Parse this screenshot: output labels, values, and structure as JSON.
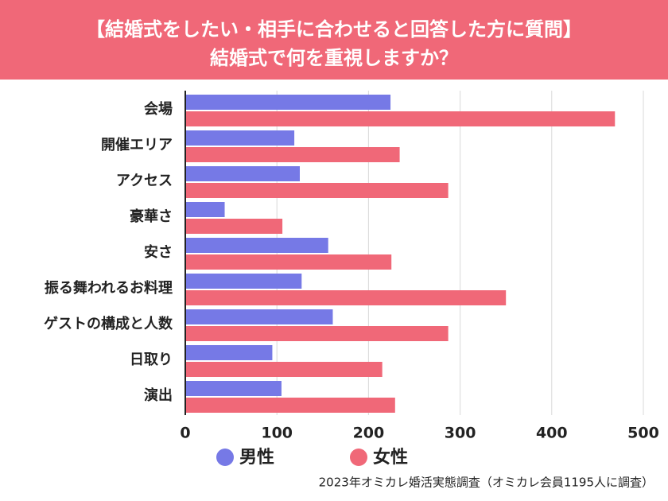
{
  "chart_data": {
    "type": "hbar",
    "title": "【結婚式をしたい・相手に合わせると回答した方に質問】",
    "subtitle": "結婚式で何を重視しますか？",
    "categories": [
      "会場",
      "開催エリア",
      "アクセス",
      "豪華さ",
      "安さ",
      "振る舞われるお料理",
      "ゲストの構成と人数",
      "日取り",
      "演出"
    ],
    "series": [
      {
        "name": "男性",
        "color": "#7679e6",
        "values": [
          224,
          119,
          125,
          43,
          156,
          127,
          161,
          95,
          105
        ]
      },
      {
        "name": "女性",
        "color": "#f06878",
        "values": [
          469,
          234,
          287,
          106,
          225,
          350,
          287,
          215,
          229
        ]
      }
    ],
    "xlim": [
      0,
      500
    ],
    "xticks": [
      0,
      100,
      200,
      300,
      400,
      500
    ],
    "grid": true,
    "legend": "bottom",
    "source": "2023年オミカレ婚活実態調査（オミカレ会員1195人に調査）"
  }
}
